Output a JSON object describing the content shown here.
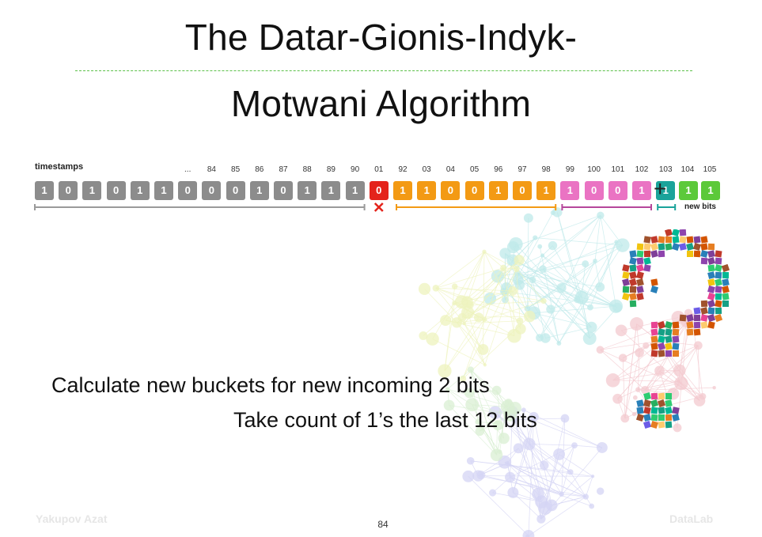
{
  "title_line1": "The Datar-Gionis-Indyk-",
  "title_line2": "Motwani Algorithm",
  "stream": {
    "timestamps_label": "timestamps",
    "tick_labels": [
      {
        "text": "...",
        "slot": 6
      },
      {
        "text": "84",
        "slot": 7
      },
      {
        "text": "85",
        "slot": 8
      },
      {
        "text": "86",
        "slot": 9
      },
      {
        "text": "87",
        "slot": 10
      },
      {
        "text": "88",
        "slot": 11
      },
      {
        "text": "89",
        "slot": 12
      },
      {
        "text": "90",
        "slot": 13
      },
      {
        "text": "01",
        "slot": 14
      },
      {
        "text": "92",
        "slot": 15
      },
      {
        "text": "03",
        "slot": 16
      },
      {
        "text": "04",
        "slot": 17
      },
      {
        "text": "05",
        "slot": 18
      },
      {
        "text": "96",
        "slot": 19
      },
      {
        "text": "97",
        "slot": 20
      },
      {
        "text": "98",
        "slot": 21
      },
      {
        "text": "99",
        "slot": 22
      },
      {
        "text": "100",
        "slot": 23
      },
      {
        "text": "101",
        "slot": 24
      },
      {
        "text": "102",
        "slot": 25
      },
      {
        "text": "103",
        "slot": 26
      }
    ],
    "bits": [
      "1",
      "0",
      "1",
      "0",
      "1",
      "1",
      "0",
      "0",
      "0",
      "1",
      "0",
      "1",
      "1",
      "1",
      "0",
      "1",
      "1",
      "0",
      "0",
      "1",
      "0",
      "1",
      "1",
      "0",
      "0",
      "1",
      "1"
    ],
    "new_tick_labels": [
      "104",
      "105"
    ],
    "new_bits": [
      "1",
      "1"
    ],
    "plus": "+",
    "new_bits_label": "new bits",
    "colors": {
      "old": "#8c8c8c",
      "expired": "#e4231b",
      "bucket_orange": "#f39a14",
      "bucket_pink": "#ea73c3",
      "bucket_teal": "#1aa39a",
      "new": "#5cc93a"
    }
  },
  "message_line1": "Calculate new buckets for new incoming 2 bits",
  "message_line2": "Take count of 1’s the last 12 bits",
  "footer": {
    "author": "Yakupov Azat",
    "page": "84",
    "lab": "DataLab"
  }
}
